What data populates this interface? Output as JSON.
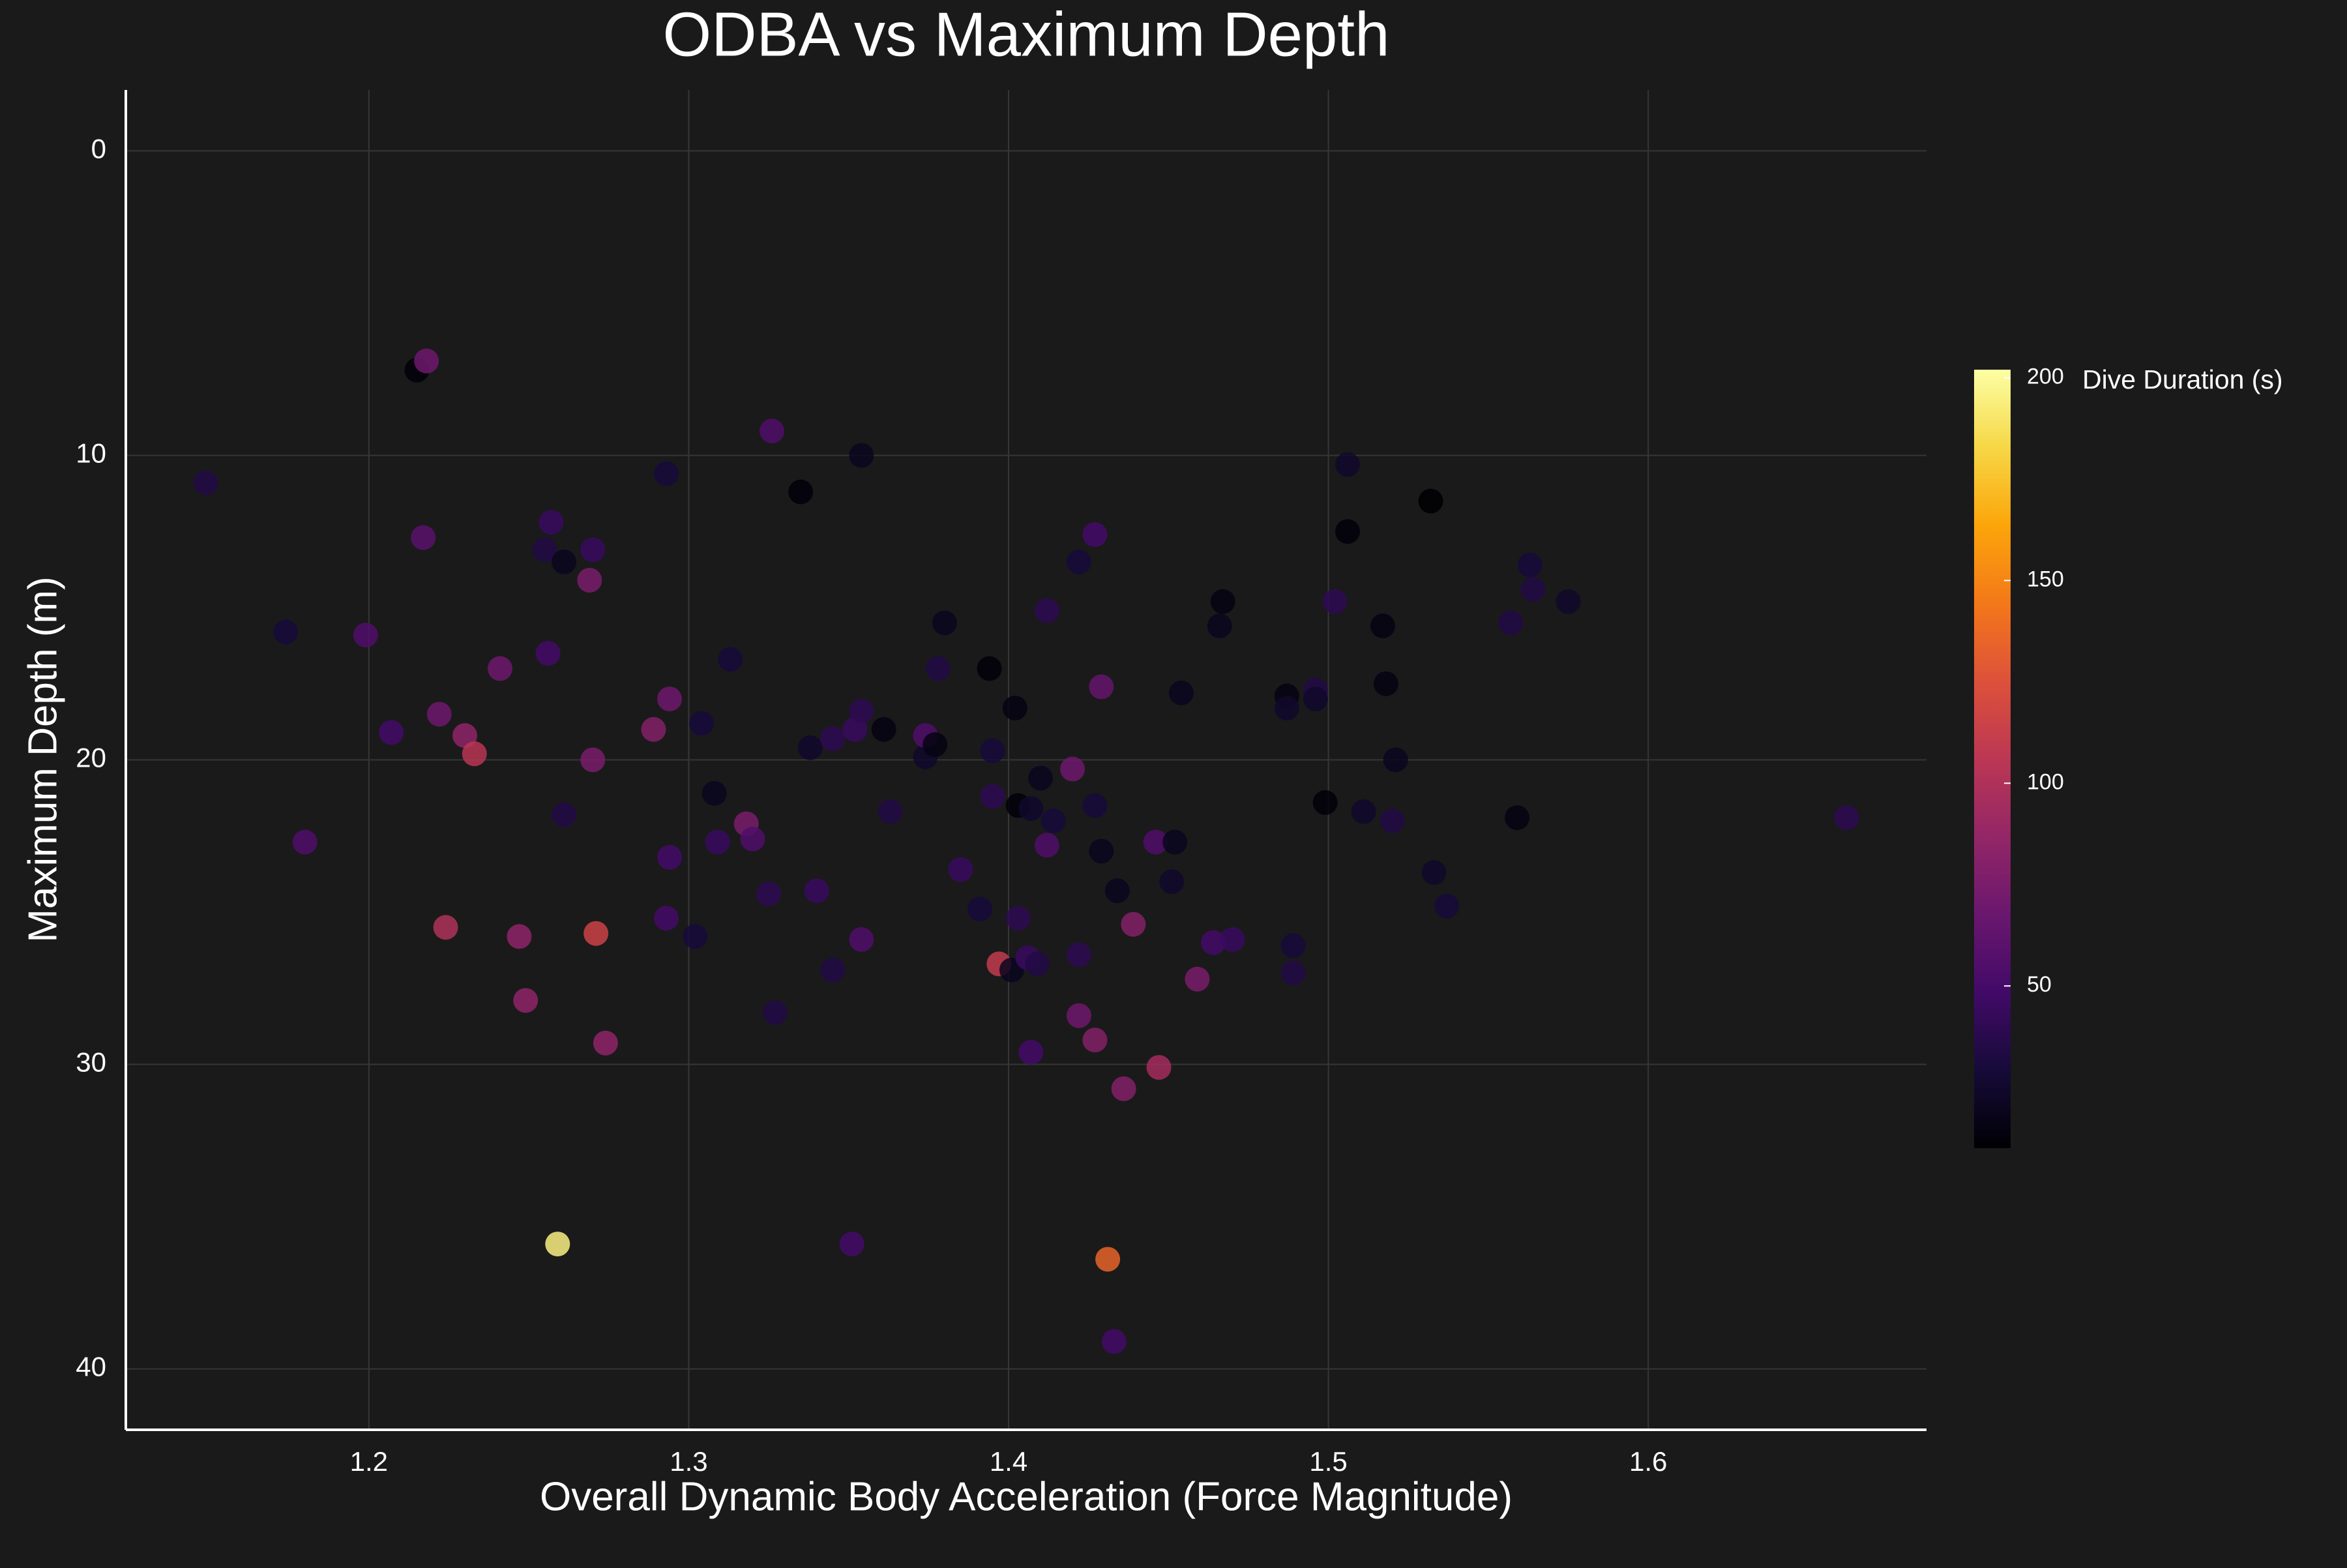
{
  "chart_data": {
    "type": "scatter",
    "title": "ODBA vs Maximum Depth",
    "x_label": "Overall Dynamic Body Acceleration (Force Magnitude)",
    "y_label": "Maximum Depth (m)",
    "xlim": [
      1.124,
      1.687
    ],
    "xticks": [
      1.2,
      1.3,
      1.4,
      1.5,
      1.6
    ],
    "ylim": [
      -2,
      42
    ],
    "yticks": [
      0,
      10,
      20,
      30,
      40
    ],
    "y_reversed": true,
    "grid": true,
    "colormap": "inferno",
    "colorbar": {
      "label": "Dive Duration (s)",
      "lim": [
        10,
        202
      ],
      "ticks": [
        50,
        100,
        150,
        200
      ]
    },
    "x": [
      1.149,
      1.215,
      1.218,
      1.174,
      1.199,
      1.217,
      1.207,
      1.18,
      1.222,
      1.23,
      1.233,
      1.224,
      1.247,
      1.249,
      1.259,
      1.271,
      1.274,
      1.241,
      1.255,
      1.257,
      1.256,
      1.261,
      1.269,
      1.27,
      1.261,
      1.27,
      1.289,
      1.293,
      1.294,
      1.294,
      1.293,
      1.302,
      1.304,
      1.308,
      1.309,
      1.313,
      1.318,
      1.32,
      1.326,
      1.325,
      1.327,
      1.335,
      1.338,
      1.34,
      1.345,
      1.345,
      1.352,
      1.354,
      1.354,
      1.354,
      1.351,
      1.361,
      1.363,
      1.374,
      1.374,
      1.377,
      1.38,
      1.378,
      1.385,
      1.391,
      1.394,
      1.395,
      1.395,
      1.397,
      1.402,
      1.403,
      1.401,
      1.403,
      1.406,
      1.407,
      1.407,
      1.409,
      1.41,
      1.412,
      1.412,
      1.414,
      1.42,
      1.422,
      1.422,
      1.422,
      1.427,
      1.427,
      1.429,
      1.429,
      1.427,
      1.431,
      1.434,
      1.436,
      1.439,
      1.433,
      1.446,
      1.447,
      1.451,
      1.452,
      1.454,
      1.459,
      1.464,
      1.47,
      1.467,
      1.466,
      1.487,
      1.487,
      1.489,
      1.489,
      1.496,
      1.496,
      1.499,
      1.502,
      1.506,
      1.506,
      1.511,
      1.517,
      1.518,
      1.52,
      1.521,
      1.532,
      1.533,
      1.537,
      1.557,
      1.559,
      1.563,
      1.564,
      1.575,
      1.662
    ],
    "values": [
      10.9,
      7.2,
      6.9,
      15.8,
      15.9,
      12.7,
      19.1,
      22.7,
      18.5,
      19.2,
      19.8,
      25.5,
      25.8,
      27.9,
      35.9,
      25.7,
      29.3,
      17.0,
      13.1,
      12.2,
      16.5,
      13.5,
      14.1,
      13.1,
      21.8,
      20.0,
      19.0,
      10.6,
      18.0,
      23.2,
      25.2,
      25.8,
      18.8,
      21.1,
      22.7,
      16.7,
      22.1,
      22.6,
      9.2,
      24.4,
      28.3,
      11.2,
      19.6,
      24.3,
      19.3,
      26.9,
      19.0,
      18.4,
      10.0,
      25.9,
      35.9,
      19.0,
      21.7,
      19.9,
      19.2,
      19.5,
      15.5,
      17.0,
      23.6,
      24.9,
      17.0,
      19.7,
      21.2,
      26.7,
      18.3,
      21.5,
      26.9,
      25.2,
      26.5,
      21.6,
      29.6,
      26.7,
      20.6,
      15.1,
      22.8,
      22.0,
      20.3,
      13.5,
      26.4,
      28.4,
      12.6,
      21.5,
      23.0,
      17.6,
      29.2,
      36.4,
      24.3,
      30.8,
      25.4,
      39.1,
      22.7,
      30.1,
      24.0,
      22.7,
      17.8,
      27.2,
      26.0,
      25.9,
      14.8,
      15.6,
      17.9,
      18.3,
      26.1,
      27.0,
      17.7,
      18.0,
      21.4,
      14.8,
      10.3,
      12.5,
      21.7,
      15.6,
      17.5,
      22.0,
      20.0,
      11.5,
      23.7,
      24.8,
      15.5,
      21.9,
      13.6,
      14.4,
      14.8,
      21.9
    ],
    "color_values": [
      35,
      12,
      70,
      30,
      55,
      60,
      50,
      55,
      70,
      85,
      105,
      100,
      85,
      85,
      195,
      115,
      85,
      70,
      35,
      45,
      50,
      20,
      75,
      45,
      35,
      75,
      80,
      30,
      70,
      50,
      50,
      30,
      30,
      20,
      45,
      30,
      75,
      55,
      55,
      40,
      35,
      12,
      25,
      45,
      40,
      35,
      45,
      40,
      20,
      55,
      50,
      15,
      35,
      25,
      55,
      15,
      20,
      35,
      45,
      30,
      12,
      30,
      40,
      110,
      15,
      12,
      20,
      40,
      45,
      25,
      50,
      35,
      20,
      40,
      55,
      30,
      70,
      30,
      40,
      70,
      50,
      30,
      20,
      65,
      80,
      135,
      20,
      80,
      80,
      50,
      55,
      95,
      25,
      20,
      20,
      75,
      50,
      45,
      15,
      20,
      15,
      25,
      30,
      35,
      35,
      25,
      12,
      40,
      25,
      12,
      25,
      15,
      15,
      35,
      20,
      10,
      25,
      30,
      35,
      15,
      30,
      35,
      25,
      40
    ]
  }
}
